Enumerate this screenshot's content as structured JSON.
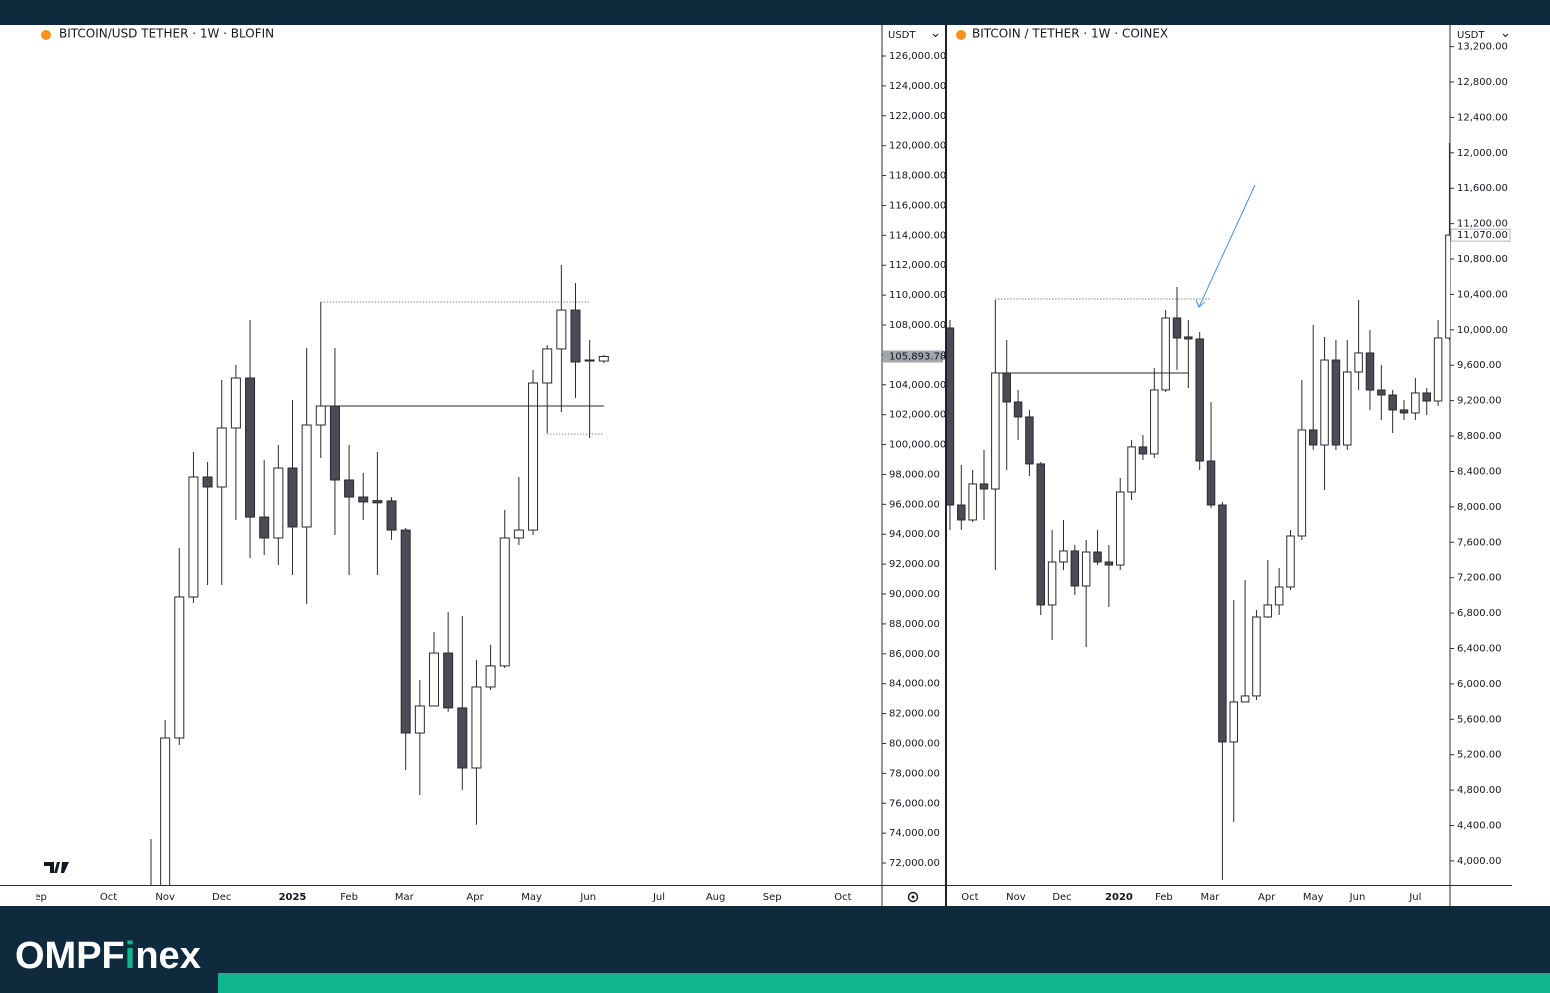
{
  "chart_data": [
    {
      "type": "candlestick",
      "title": "BITCOIN/USD TETHER · 1W · BLOFIN",
      "currency": "USDT",
      "last_price": {
        "value": 105893.78,
        "label": "105,893.78"
      },
      "xlim": [
        -10.67,
        51.66
      ],
      "xticks": [
        {
          "value": -7.8,
          "label": "ep"
        },
        {
          "value": -3,
          "label": "Oct"
        },
        {
          "value": 1,
          "label": "Nov"
        },
        {
          "value": 5,
          "label": "Dec"
        },
        {
          "value": 10,
          "label": "2025"
        },
        {
          "value": 14,
          "label": "Feb"
        },
        {
          "value": 17.9,
          "label": "Mar"
        },
        {
          "value": 22.9,
          "label": "Apr"
        },
        {
          "value": 26.9,
          "label": "May"
        },
        {
          "value": 30.9,
          "label": "Jun"
        },
        {
          "value": 35.9,
          "label": "Jul"
        },
        {
          "value": 39.9,
          "label": "Aug"
        },
        {
          "value": 43.9,
          "label": "Sep"
        },
        {
          "value": 48.9,
          "label": "Oct"
        }
      ],
      "ylim": [
        70530,
        128075
      ],
      "yticks": [
        {
          "value": 72000,
          "label": "72,000.00"
        },
        {
          "value": 74000,
          "label": "74,000.00"
        },
        {
          "value": 76000,
          "label": "76,000.00"
        },
        {
          "value": 78000,
          "label": "78,000.00"
        },
        {
          "value": 80000,
          "label": "80,000.00"
        },
        {
          "value": 82000,
          "label": "82,000.00"
        },
        {
          "value": 84000,
          "label": "84,000.00"
        },
        {
          "value": 86000,
          "label": "86,000.00"
        },
        {
          "value": 88000,
          "label": "88,000.00"
        },
        {
          "value": 90000,
          "label": "90,000.00"
        },
        {
          "value": 92000,
          "label": "92,000.00"
        },
        {
          "value": 94000,
          "label": "94,000.00"
        },
        {
          "value": 96000,
          "label": "96,000.00"
        },
        {
          "value": 98000,
          "label": "98,000.00"
        },
        {
          "value": 100000,
          "label": "100,000.00"
        },
        {
          "value": 102000,
          "label": "102,000.00"
        },
        {
          "value": 104000,
          "label": "104,000.00"
        },
        {
          "value": 106000,
          "label": "106,000.00"
        },
        {
          "value": 108000,
          "label": "108,000.00"
        },
        {
          "value": 110000,
          "label": "110,000.00"
        },
        {
          "value": 112000,
          "label": "112,000.00"
        },
        {
          "value": 114000,
          "label": "114,000.00"
        },
        {
          "value": 116000,
          "label": "116,000.00"
        },
        {
          "value": 118000,
          "label": "118,000.00"
        },
        {
          "value": 120000,
          "label": "120,000.00"
        },
        {
          "value": 122000,
          "label": "122,000.00"
        },
        {
          "value": 124000,
          "label": "124,000.00"
        },
        {
          "value": 126000,
          "label": "126,000.00"
        }
      ],
      "up_color": "#ffffff",
      "down_color": "#4b4b55",
      "open": [
        67900,
        68700,
        80367,
        89802,
        97831,
        97162,
        101110,
        104455,
        95150,
        93750,
        98430,
        94486,
        101310,
        102580,
        97630,
        96490,
        96250,
        96230,
        94280,
        80700,
        82510,
        86050,
        82380,
        78360,
        83780,
        85190,
        93750,
        94280,
        104120,
        106400,
        109000,
        105660,
        105590
      ],
      "high": [
        73600,
        81570,
        93080,
        99504,
        98835,
        104320,
        105330,
        108335,
        98970,
        99970,
        102980,
        106460,
        109540,
        106460,
        99970,
        98100,
        99500,
        96490,
        94420,
        84250,
        87460,
        88800,
        88530,
        85590,
        86600,
        95630,
        97830,
        104990,
        106660,
        112020,
        110810,
        107000,
        105990
      ],
      "low": [
        66800,
        66800,
        79900,
        89400,
        90600,
        90600,
        94950,
        92410,
        92610,
        91940,
        91270,
        89330,
        99100,
        93950,
        91270,
        94950,
        91270,
        93620,
        78225,
        76550,
        82580,
        82110,
        76890,
        74550,
        83580,
        85050,
        93280,
        93950,
        100775,
        102180,
        103120,
        100440,
        105460
      ],
      "close": [
        68700,
        80367,
        89802,
        97831,
        97162,
        101110,
        104455,
        95150,
        93750,
        98430,
        94486,
        101310,
        102580,
        97630,
        96490,
        96160,
        96100,
        94280,
        80700,
        82510,
        86050,
        82380,
        78360,
        83780,
        85190,
        93750,
        94280,
        104120,
        106400,
        109000,
        105525,
        105590,
        105894
      ],
      "levels": [
        {
          "value": 109540,
          "from": 12,
          "to": 31,
          "style": "dotted"
        },
        {
          "value": 102580,
          "from": 12,
          "to": 32,
          "style": "solid"
        },
        {
          "value": 100700,
          "from": 28,
          "to": 32,
          "style": "dotted"
        }
      ]
    },
    {
      "type": "candlestick",
      "title": "BITCOIN / TETHER · 1W · COINEX",
      "currency": "USDT",
      "last_price": {
        "value": 11070,
        "label": "11,070.00"
      },
      "xlim": [
        -0.26,
        44.05
      ],
      "xticks": [
        {
          "value": 1.76,
          "label": "Oct"
        },
        {
          "value": 5.81,
          "label": "Nov"
        },
        {
          "value": 9.87,
          "label": "Dec"
        },
        {
          "value": 14.89,
          "label": "2020"
        },
        {
          "value": 18.85,
          "label": "Feb"
        },
        {
          "value": 22.9,
          "label": "Mar"
        },
        {
          "value": 27.9,
          "label": "Apr"
        },
        {
          "value": 32,
          "label": "May"
        },
        {
          "value": 35.9,
          "label": "Jun"
        },
        {
          "value": 41,
          "label": "Jul"
        }
      ],
      "ylim": [
        3728,
        13444
      ],
      "yticks": [
        {
          "value": 4000,
          "label": "4,000.00"
        },
        {
          "value": 4400,
          "label": "4,400.00"
        },
        {
          "value": 4800,
          "label": "4,800.00"
        },
        {
          "value": 5200,
          "label": "5,200.00"
        },
        {
          "value": 5600,
          "label": "5,600.00"
        },
        {
          "value": 6000,
          "label": "6,000.00"
        },
        {
          "value": 6400,
          "label": "6,400.00"
        },
        {
          "value": 6800,
          "label": "6,800.00"
        },
        {
          "value": 7200,
          "label": "7,200.00"
        },
        {
          "value": 7600,
          "label": "7,600.00"
        },
        {
          "value": 8000,
          "label": "8,000.00"
        },
        {
          "value": 8400,
          "label": "8,400.00"
        },
        {
          "value": 8800,
          "label": "8,800.00"
        },
        {
          "value": 9200,
          "label": "9,200.00"
        },
        {
          "value": 9600,
          "label": "9,600.00"
        },
        {
          "value": 10000,
          "label": "10,000.00"
        },
        {
          "value": 10400,
          "label": "10,400.00"
        },
        {
          "value": 10800,
          "label": "10,800.00"
        },
        {
          "value": 11200,
          "label": "11,200.00"
        },
        {
          "value": 11600,
          "label": "11,600.00"
        },
        {
          "value": 12000,
          "label": "12,000.00"
        },
        {
          "value": 12400,
          "label": "12,400.00"
        },
        {
          "value": 12800,
          "label": "12,800.00"
        },
        {
          "value": 13200,
          "label": "13,200.00"
        }
      ],
      "up_color": "#ffffff",
      "down_color": "#4b4b55",
      "open": [
        10021,
        8021,
        7852,
        8259,
        8202,
        9513,
        9185,
        9016,
        8485,
        6892,
        7377,
        7502,
        7106,
        7490,
        7377,
        7343,
        8168,
        8677,
        8598,
        9321,
        10134,
        9920,
        9897,
        8518,
        8021,
        5344,
        5796,
        5864,
        6756,
        6892,
        7095,
        7671,
        8869,
        8699,
        9659,
        8699,
        9524,
        9739,
        9320,
        9264,
        9095,
        9061,
        9287,
        9196,
        9908
      ],
      "high": [
        10111,
        8473,
        8417,
        8643,
        10337,
        9885,
        9321,
        9095,
        8507,
        7739,
        7852,
        7569,
        7626,
        7739,
        7569,
        8326,
        8756,
        8812,
        9569,
        10224,
        10484,
        10111,
        9976,
        9185,
        8055,
        6948,
        7174,
        6835,
        7400,
        7310,
        7739,
        9434,
        10055,
        9919,
        9885,
        9885,
        10337,
        9998,
        9603,
        9321,
        9208,
        9456,
        9343,
        10111,
        12111
      ],
      "low": [
        7739,
        7739,
        7829,
        7852,
        7287,
        8417,
        8756,
        8349,
        6779,
        6496,
        7287,
        7005,
        6417,
        7343,
        6869,
        7287,
        8078,
        8530,
        8552,
        9298,
        9547,
        9343,
        8417,
        7987,
        3785,
        4440,
        5818,
        5818,
        6745,
        6779,
        7061,
        7626,
        8643,
        8191,
        8643,
        8643,
        9321,
        9095,
        8982,
        8835,
        8982,
        8982,
        9038,
        9140,
        9885
      ],
      "close": [
        8021,
        7852,
        8259,
        8202,
        9513,
        9185,
        9016,
        8485,
        6892,
        7377,
        7502,
        7106,
        7490,
        7377,
        7343,
        8168,
        8677,
        8598,
        9321,
        10134,
        9908,
        9897,
        8518,
        8021,
        5344,
        5796,
        5864,
        6756,
        6892,
        7095,
        7671,
        8869,
        8699,
        9659,
        8699,
        9524,
        9739,
        9320,
        9264,
        9095,
        9061,
        9287,
        9196,
        9908,
        11070
      ],
      "levels": [
        {
          "value": 10349,
          "from": 4,
          "to": 23,
          "style": "dotted"
        },
        {
          "value": 9513,
          "from": 4,
          "to": 21,
          "style": "solid"
        }
      ]
    }
  ],
  "brand": {
    "prefix": "OMPF",
    "highlight": "i",
    "suffix": "nex"
  }
}
